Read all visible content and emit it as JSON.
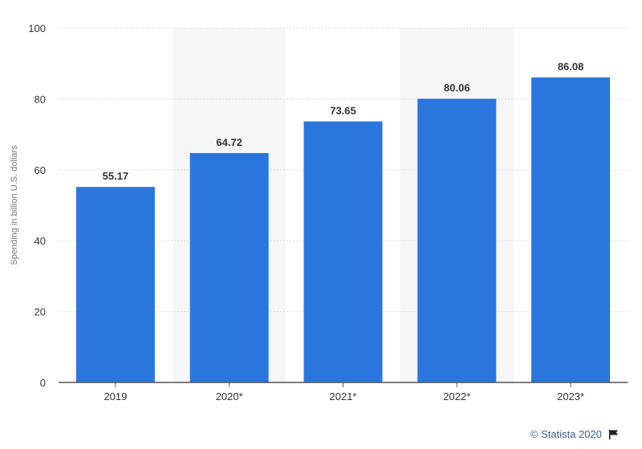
{
  "chart_data": {
    "type": "bar",
    "categories": [
      "2019",
      "2020*",
      "2021*",
      "2022*",
      "2023*"
    ],
    "values": [
      55.17,
      64.72,
      73.65,
      80.06,
      86.08
    ],
    "value_labels": [
      "55.17",
      "64.72",
      "73.65",
      "80.06",
      "86.08"
    ],
    "ylabel": "Spending in billion U.S. dollars",
    "ylim": [
      0,
      100
    ],
    "yticks": [
      "0",
      "20",
      "40",
      "60",
      "80",
      "100"
    ],
    "grid": true,
    "bar_color": "#2a76dd",
    "shaded_band_color": "#f6f6f6",
    "shaded_categories": [
      "2020*",
      "2022*"
    ]
  },
  "footer": {
    "credit": "© Statista 2020",
    "flag_icon": "flag-icon"
  }
}
